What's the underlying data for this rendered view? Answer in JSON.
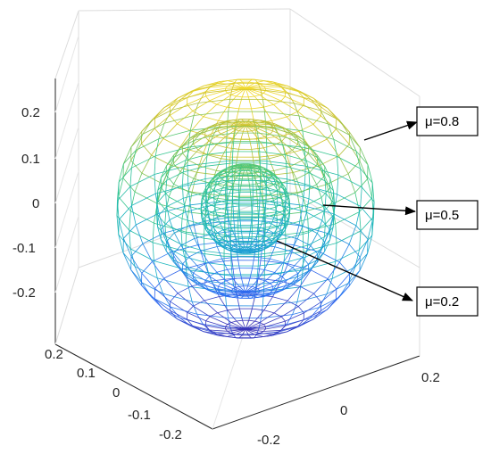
{
  "chart_data": {
    "type": "3d-wireframe-sphere",
    "title": "",
    "z_axis": {
      "ticks": [
        "0.2",
        "0.1",
        "0",
        "-0.1",
        "-0.2"
      ],
      "range": [
        -0.28,
        0.28
      ]
    },
    "x_axis": {
      "ticks": [
        "0.2",
        "0.1",
        "0",
        "-0.1",
        "-0.2"
      ],
      "range": [
        -0.28,
        0.28
      ]
    },
    "y_axis": {
      "ticks": [
        "0.2",
        "0",
        "-0.2"
      ],
      "range": [
        -0.28,
        0.28
      ]
    },
    "grid": true,
    "colormap": [
      "#3e26a8",
      "#2c6ff5",
      "#17b2c5",
      "#37c886",
      "#c9c130",
      "#f9dd2a"
    ],
    "series": [
      {
        "name": "μ=0.8",
        "radius": 0.26
      },
      {
        "name": "μ=0.5",
        "radius": 0.18
      },
      {
        "name": "μ=0.2",
        "radius": 0.09
      }
    ],
    "annotations": [
      {
        "label": "μ=0.8",
        "target_series": 0
      },
      {
        "label": "μ=0.5",
        "target_series": 1
      },
      {
        "label": "μ=0.2",
        "target_series": 2
      }
    ]
  }
}
